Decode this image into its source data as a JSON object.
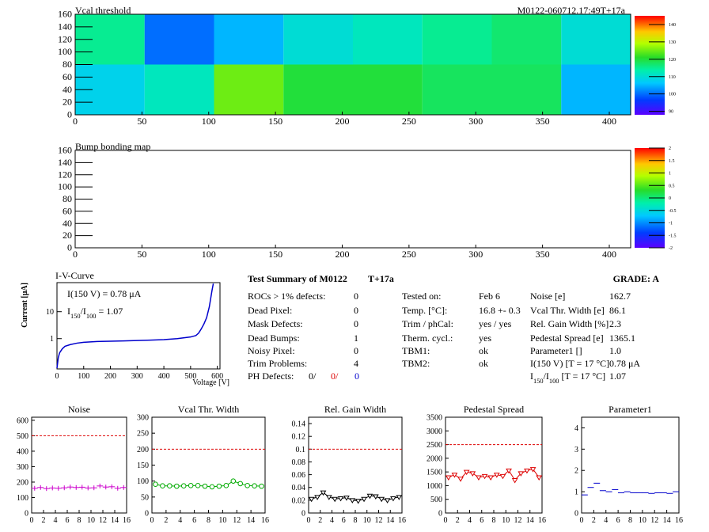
{
  "chart_data": [
    {
      "type": "heatmap",
      "title": "Vcal threshold",
      "label": "M0122-060712.17:49T+17a",
      "xbins": [
        0,
        52,
        104,
        156,
        208,
        260,
        312,
        364,
        416
      ],
      "ybins": [
        0,
        80,
        160
      ],
      "values": [
        [
          108,
          112,
          125,
          120,
          120,
          118,
          118,
          105
        ],
        [
          115,
          100,
          105,
          110,
          112,
          115,
          117,
          110
        ]
      ],
      "xlim": [
        0,
        416
      ],
      "ylim": [
        0,
        160
      ],
      "xticks": [
        0,
        50,
        100,
        150,
        200,
        250,
        300,
        350,
        400
      ],
      "yticks": [
        0,
        20,
        40,
        60,
        80,
        100,
        120,
        140,
        160
      ],
      "clim": [
        88,
        145
      ],
      "cticks": [
        90,
        100,
        110,
        120,
        130,
        140
      ]
    },
    {
      "type": "heatmap",
      "title": "Bump bonding map",
      "xlim": [
        0,
        416
      ],
      "ylim": [
        0,
        160
      ],
      "xticks": [
        0,
        50,
        100,
        150,
        200,
        250,
        300,
        350,
        400
      ],
      "yticks": [
        0,
        20,
        40,
        60,
        80,
        100,
        120,
        140,
        160
      ],
      "clim": [
        -2,
        2
      ],
      "cticks": [
        -2,
        -1.5,
        -1,
        -0.5,
        0,
        0.5,
        1,
        1.5,
        2
      ]
    },
    {
      "type": "ivcurve",
      "title": "I-V-Curve",
      "xlabel": "Voltage [V]",
      "ylabel": "Current [μA]",
      "color": "#0000cc",
      "log_y": true,
      "x": [
        0,
        5,
        10,
        20,
        30,
        50,
        75,
        100,
        150,
        200,
        250,
        300,
        350,
        400,
        450,
        500,
        520,
        530,
        540,
        550,
        560,
        570,
        575,
        580,
        585
      ],
      "values": [
        0.08,
        0.2,
        0.3,
        0.42,
        0.52,
        0.6,
        0.68,
        0.73,
        0.78,
        0.8,
        0.82,
        0.85,
        0.88,
        0.92,
        1.0,
        1.15,
        1.3,
        1.6,
        2.3,
        3.5,
        6,
        15,
        30,
        60,
        110
      ],
      "xlim": [
        0,
        610
      ],
      "ylim": [
        0.075,
        120
      ],
      "xticks": [
        0,
        100,
        200,
        300,
        400,
        500,
        600
      ],
      "yticks": [
        1,
        10
      ],
      "annotations": [
        [
          {
            "text": "I(150 V) = 0.78 μA"
          }
        ],
        [
          {
            "text": "I"
          },
          {
            "text": "150",
            "sub": true
          },
          {
            "text": "/I"
          },
          {
            "text": "100",
            "sub": true
          },
          {
            "text": " =  1.07"
          }
        ]
      ]
    },
    {
      "type": "line",
      "title": "Noise",
      "color": "#cc00cc",
      "marker": "cross",
      "connect": false,
      "threshold": 500,
      "x": [
        0.5,
        1.5,
        2.5,
        3.5,
        4.5,
        5.5,
        6.5,
        7.5,
        8.5,
        9.5,
        10.5,
        11.5,
        12.5,
        13.5,
        14.5,
        15.5
      ],
      "values": [
        160,
        165,
        158,
        162,
        160,
        163,
        168,
        165,
        167,
        162,
        163,
        175,
        168,
        170,
        160,
        165
      ],
      "xlim": [
        0,
        16
      ],
      "ylim": [
        0,
        620
      ],
      "xticks": [
        0,
        2,
        4,
        6,
        8,
        10,
        12,
        14,
        16
      ],
      "yticks": [
        0,
        100,
        200,
        300,
        400,
        500,
        600
      ]
    },
    {
      "type": "line",
      "title": "Vcal Thr. Width",
      "color": "#00aa00",
      "marker": "circle",
      "connect": true,
      "threshold": 200,
      "x": [
        0.5,
        1.5,
        2.5,
        3.5,
        4.5,
        5.5,
        6.5,
        7.5,
        8.5,
        9.5,
        10.5,
        11.5,
        12.5,
        13.5,
        14.5,
        15.5
      ],
      "values": [
        90,
        85,
        85,
        84,
        85,
        86,
        86,
        84,
        82,
        84,
        86,
        100,
        92,
        86,
        85,
        84
      ],
      "xlim": [
        0,
        16
      ],
      "ylim": [
        0,
        300
      ],
      "xticks": [
        0,
        2,
        4,
        6,
        8,
        10,
        12,
        14,
        16
      ],
      "yticks": [
        0,
        50,
        100,
        150,
        200,
        250,
        300
      ]
    },
    {
      "type": "line",
      "title": "Rel. Gain Width",
      "color": "#000000",
      "marker": "triangle",
      "connect": true,
      "threshold": 0.1,
      "x": [
        0.5,
        1.5,
        2.5,
        3.5,
        4.5,
        5.5,
        6.5,
        7.5,
        8.5,
        9.5,
        10.5,
        11.5,
        12.5,
        13.5,
        14.5,
        15.5
      ],
      "values": [
        0.022,
        0.025,
        0.032,
        0.025,
        0.022,
        0.023,
        0.024,
        0.02,
        0.019,
        0.022,
        0.027,
        0.026,
        0.022,
        0.02,
        0.023,
        0.025
      ],
      "xlim": [
        0,
        16
      ],
      "ylim": [
        0,
        0.15
      ],
      "xticks": [
        0,
        2,
        4,
        6,
        8,
        10,
        12,
        14,
        16
      ],
      "yticks": [
        0,
        0.02,
        0.04,
        0.06,
        0.08,
        0.1,
        0.12,
        0.14
      ]
    },
    {
      "type": "line",
      "title": "Pedestal Spread",
      "color": "#dd0000",
      "marker": "triangle",
      "connect": true,
      "threshold": 2500,
      "x": [
        0.5,
        1.5,
        2.5,
        3.5,
        4.5,
        5.5,
        6.5,
        7.5,
        8.5,
        9.5,
        10.5,
        11.5,
        12.5,
        13.5,
        14.5,
        15.5
      ],
      "values": [
        1300,
        1400,
        1250,
        1500,
        1450,
        1300,
        1350,
        1300,
        1400,
        1350,
        1550,
        1200,
        1450,
        1550,
        1600,
        1300
      ],
      "xlim": [
        0,
        16
      ],
      "ylim": [
        0,
        3500
      ],
      "xticks": [
        0,
        2,
        4,
        6,
        8,
        10,
        12,
        14,
        16
      ],
      "yticks": [
        0,
        500,
        1000,
        1500,
        2000,
        2500,
        3000,
        3500
      ]
    },
    {
      "type": "line",
      "title": "Parameter1",
      "color": "#0000cc",
      "marker": "dash",
      "connect": false,
      "x": [
        0.5,
        1.5,
        2.5,
        3.5,
        4.5,
        5.5,
        6.5,
        7.5,
        8.5,
        9.5,
        10.5,
        11.5,
        12.5,
        13.5,
        14.5,
        15.5
      ],
      "values": [
        0.85,
        1.2,
        1.4,
        1.05,
        1.0,
        1.1,
        0.95,
        1.0,
        0.95,
        0.95,
        0.95,
        0.92,
        0.95,
        0.95,
        0.92,
        1.0
      ],
      "xlim": [
        0,
        16
      ],
      "ylim": [
        0,
        4.5
      ],
      "xticks": [
        0,
        2,
        4,
        6,
        8,
        10,
        12,
        14,
        16
      ],
      "yticks": [
        0,
        1,
        2,
        3,
        4
      ]
    }
  ],
  "summary": {
    "title": "Test Summary of M0122",
    "tag": "T+17a",
    "grade": "GRADE:  A",
    "defects": [
      [
        "ROCs > 1% defects:",
        "0"
      ],
      [
        "Dead Pixel:",
        "0"
      ],
      [
        "Mask Defects:",
        "0"
      ],
      [
        "Dead Bumps:",
        "1"
      ],
      [
        "Noisy Pixel:",
        "0"
      ],
      [
        "Trim Problems:",
        "4"
      ]
    ],
    "ph_defects": {
      "label": "PH Defects:",
      "values": [
        {
          "text": "0/",
          "color": "#000000"
        },
        {
          "text": "0/",
          "color": "#dd0000"
        },
        {
          "text": "0",
          "color": "#0000cc"
        }
      ]
    },
    "conditions": [
      [
        "Tested on:",
        "Feb 6"
      ],
      [
        "Temp. [°C]:",
        "16.8 +- 0.3"
      ],
      [
        "Trim / phCal:",
        "yes / yes"
      ],
      [
        "Therm. cycl.:",
        "yes"
      ],
      [
        "TBM1:",
        "ok"
      ],
      [
        "TBM2:",
        "ok"
      ]
    ],
    "results": [
      {
        "label": [
          {
            "text": "Noise [e]"
          }
        ],
        "value": "162.7"
      },
      {
        "label": [
          {
            "text": "Vcal Thr. Width [e]"
          }
        ],
        "value": "86.1"
      },
      {
        "label": [
          {
            "text": "Rel. Gain Width [%]"
          }
        ],
        "value": "2.3"
      },
      {
        "label": [
          {
            "text": "Pedestal Spread [e]"
          }
        ],
        "value": "1365.1"
      },
      {
        "label": [
          {
            "text": "Parameter1 []"
          }
        ],
        "value": "1.0"
      },
      {
        "label": [
          {
            "text": "I(150 V) [T = 17 °C]"
          }
        ],
        "value": "0.78 μA"
      },
      {
        "label": [
          {
            "text": "I"
          },
          {
            "text": "150",
            "sub": true
          },
          {
            "text": "/I"
          },
          {
            "text": "100",
            "sub": true
          },
          {
            "text": "  [T = 17 °C]"
          }
        ],
        "value": "1.07"
      }
    ]
  }
}
